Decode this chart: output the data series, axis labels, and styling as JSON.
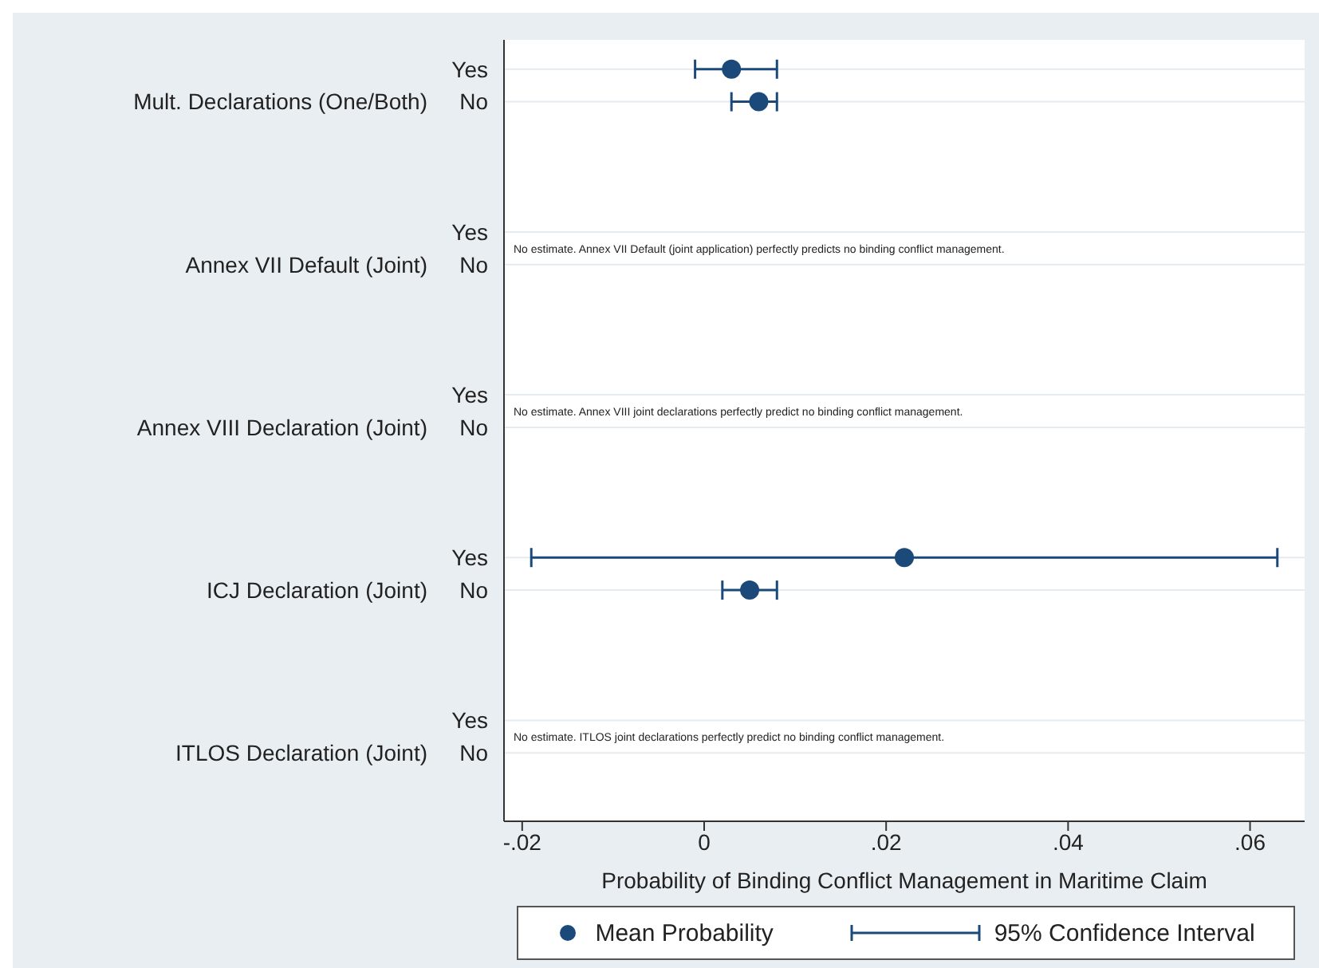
{
  "chart_data": {
    "type": "scatter",
    "orientation": "horizontal",
    "xlabel": "Probability of Binding Conflict Management in Maritime Claim",
    "categories": [
      "Yes",
      "No",
      null,
      null,
      null,
      "Yes",
      "No",
      null,
      null,
      null,
      "Yes",
      "No",
      null,
      null,
      null,
      "Yes",
      "No",
      null,
      null,
      null,
      "Yes",
      "No",
      null,
      null
    ],
    "series": [
      {
        "name": "Mean Probability",
        "color": "#1b4a7a",
        "values": [
          0.003,
          0.006,
          null,
          null,
          null,
          null,
          null,
          null,
          null,
          null,
          null,
          null,
          null,
          null,
          null,
          0.022,
          0.005,
          null,
          null,
          null,
          null,
          null,
          null,
          null
        ],
        "errors": [
          [
            -0.001,
            0.008
          ],
          [
            0.003,
            0.008
          ],
          null,
          null,
          null,
          null,
          null,
          null,
          null,
          null,
          null,
          null,
          null,
          null,
          null,
          [
            -0.019,
            0.063
          ],
          [
            0.002,
            0.008
          ],
          null,
          null,
          null,
          null,
          null,
          null,
          null
        ]
      }
    ],
    "xlim": [
      -0.022,
      0.066
    ],
    "xticks": [
      {
        "value": -0.02,
        "label": "-.02"
      },
      {
        "value": 0,
        "label": "0"
      },
      {
        "value": 0.02,
        "label": ".02"
      },
      {
        "value": 0.04,
        "label": ".04"
      },
      {
        "value": 0.06,
        "label": ".06"
      }
    ],
    "grid": "y",
    "legend": "bottom",
    "marker": "circle",
    "annotations": [
      "Mult. Declarations (One/Both)",
      "Annex VII Default (Joint)",
      "Annex VIII Declaration (Joint)",
      "ICJ Declaration (Joint)",
      "ITLOS Declaration (Joint)",
      "No estimate. Annex VII Default (joint application) perfectly predicts no binding conflict management.",
      "No estimate. Annex VIII joint declarations perfectly predict no binding conflict management.",
      "No estimate. ITLOS joint declarations perfectly predict no binding conflict management.",
      "95% Confidence Interval"
    ]
  }
}
